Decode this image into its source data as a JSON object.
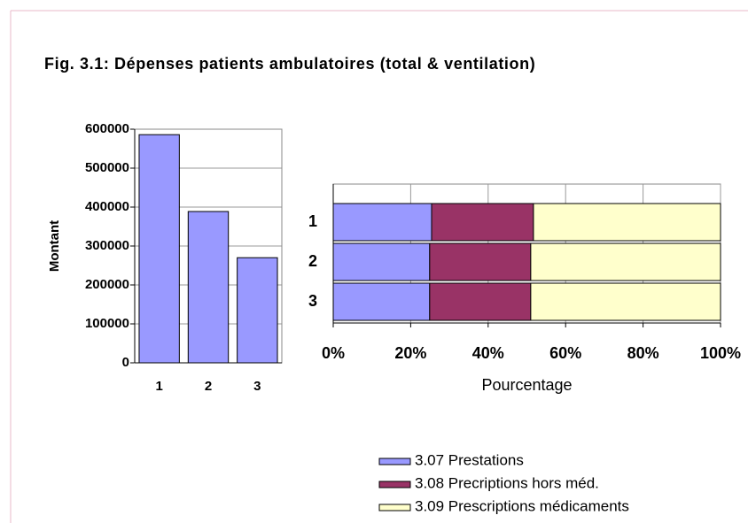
{
  "title": "Fig. 3.1: Dépenses patients ambulatoires (total & ventilation)",
  "chart_data": [
    {
      "type": "bar",
      "categories": [
        "1",
        "2",
        "3"
      ],
      "values": [
        586000,
        388600,
        270000
      ],
      "color": "#9999ff",
      "ylabel": "Montant",
      "ylim": [
        0,
        600000
      ],
      "yticks": [
        0,
        100000,
        200000,
        300000,
        400000,
        500000,
        600000
      ],
      "grid": true
    },
    {
      "type": "stacked_bar_h",
      "categories": [
        "1",
        "2",
        "3"
      ],
      "xlabel": "Pourcentage",
      "xlim": [
        0,
        100
      ],
      "xticks": [
        {
          "value": 0,
          "label": "0%"
        },
        {
          "value": 20,
          "label": "20%"
        },
        {
          "value": 40,
          "label": "40%"
        },
        {
          "value": 60,
          "label": "60%"
        },
        {
          "value": 80,
          "label": "80%"
        },
        {
          "value": 100,
          "label": "100%"
        }
      ],
      "grid": true,
      "legend": "bottom",
      "series": [
        {
          "name": "3.07 Prestations",
          "color": "#9999ff",
          "values": [
            25.4,
            24.9,
            24.9
          ]
        },
        {
          "name": "3.08 Precriptions hors méd.",
          "color": "#993366",
          "values": [
            26.3,
            26.1,
            26.1
          ]
        },
        {
          "name": "3.09 Prescriptions médicaments",
          "color": "#ffffcc",
          "values": [
            48.3,
            49.0,
            49.0
          ]
        }
      ]
    }
  ]
}
